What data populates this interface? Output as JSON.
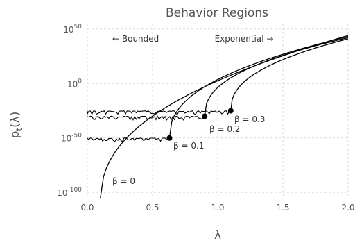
{
  "chart_data": {
    "type": "line",
    "title": "Behavior Regions",
    "xlabel": "λ",
    "ylabel_base": "p",
    "ylabel_sub": "t",
    "ylabel_suffix": "(λ)",
    "xlim": [
      0.0,
      2.0
    ],
    "ylim_log10": [
      -105,
      55
    ],
    "yscale": "log",
    "grid": true,
    "x_ticks": [
      0.0,
      0.5,
      1.0,
      1.5,
      2.0
    ],
    "x_tick_labels": [
      "0.0",
      "0.5",
      "1.0",
      "1.5",
      "2.0"
    ],
    "y_ticks_log10": [
      50,
      0,
      -50,
      -100
    ],
    "y_tick_labels": [
      {
        "base": "10",
        "exp": "50"
      },
      {
        "base": "10",
        "exp": "0"
      },
      {
        "base": "10",
        "exp": "-50"
      },
      {
        "base": "10",
        "exp": "-100"
      }
    ],
    "region_labels": [
      {
        "text": "← Bounded"
      },
      {
        "text": "Exponential →"
      }
    ],
    "series": [
      {
        "label": "β = 0",
        "beta": 0.0,
        "transition_lambda": 0.1,
        "bounded_level_log10": null,
        "end_log10": 44
      },
      {
        "label": "β = 0.1",
        "beta": 0.1,
        "transition_lambda": 0.63,
        "bounded_level_log10": -50,
        "end_log10": 43
      },
      {
        "label": "β = 0.2",
        "beta": 0.2,
        "transition_lambda": 0.9,
        "bounded_level_log10": -30,
        "end_log10": 42
      },
      {
        "label": "β = 0.3",
        "beta": 0.3,
        "transition_lambda": 1.1,
        "bounded_level_log10": -25,
        "end_log10": 41
      }
    ]
  }
}
